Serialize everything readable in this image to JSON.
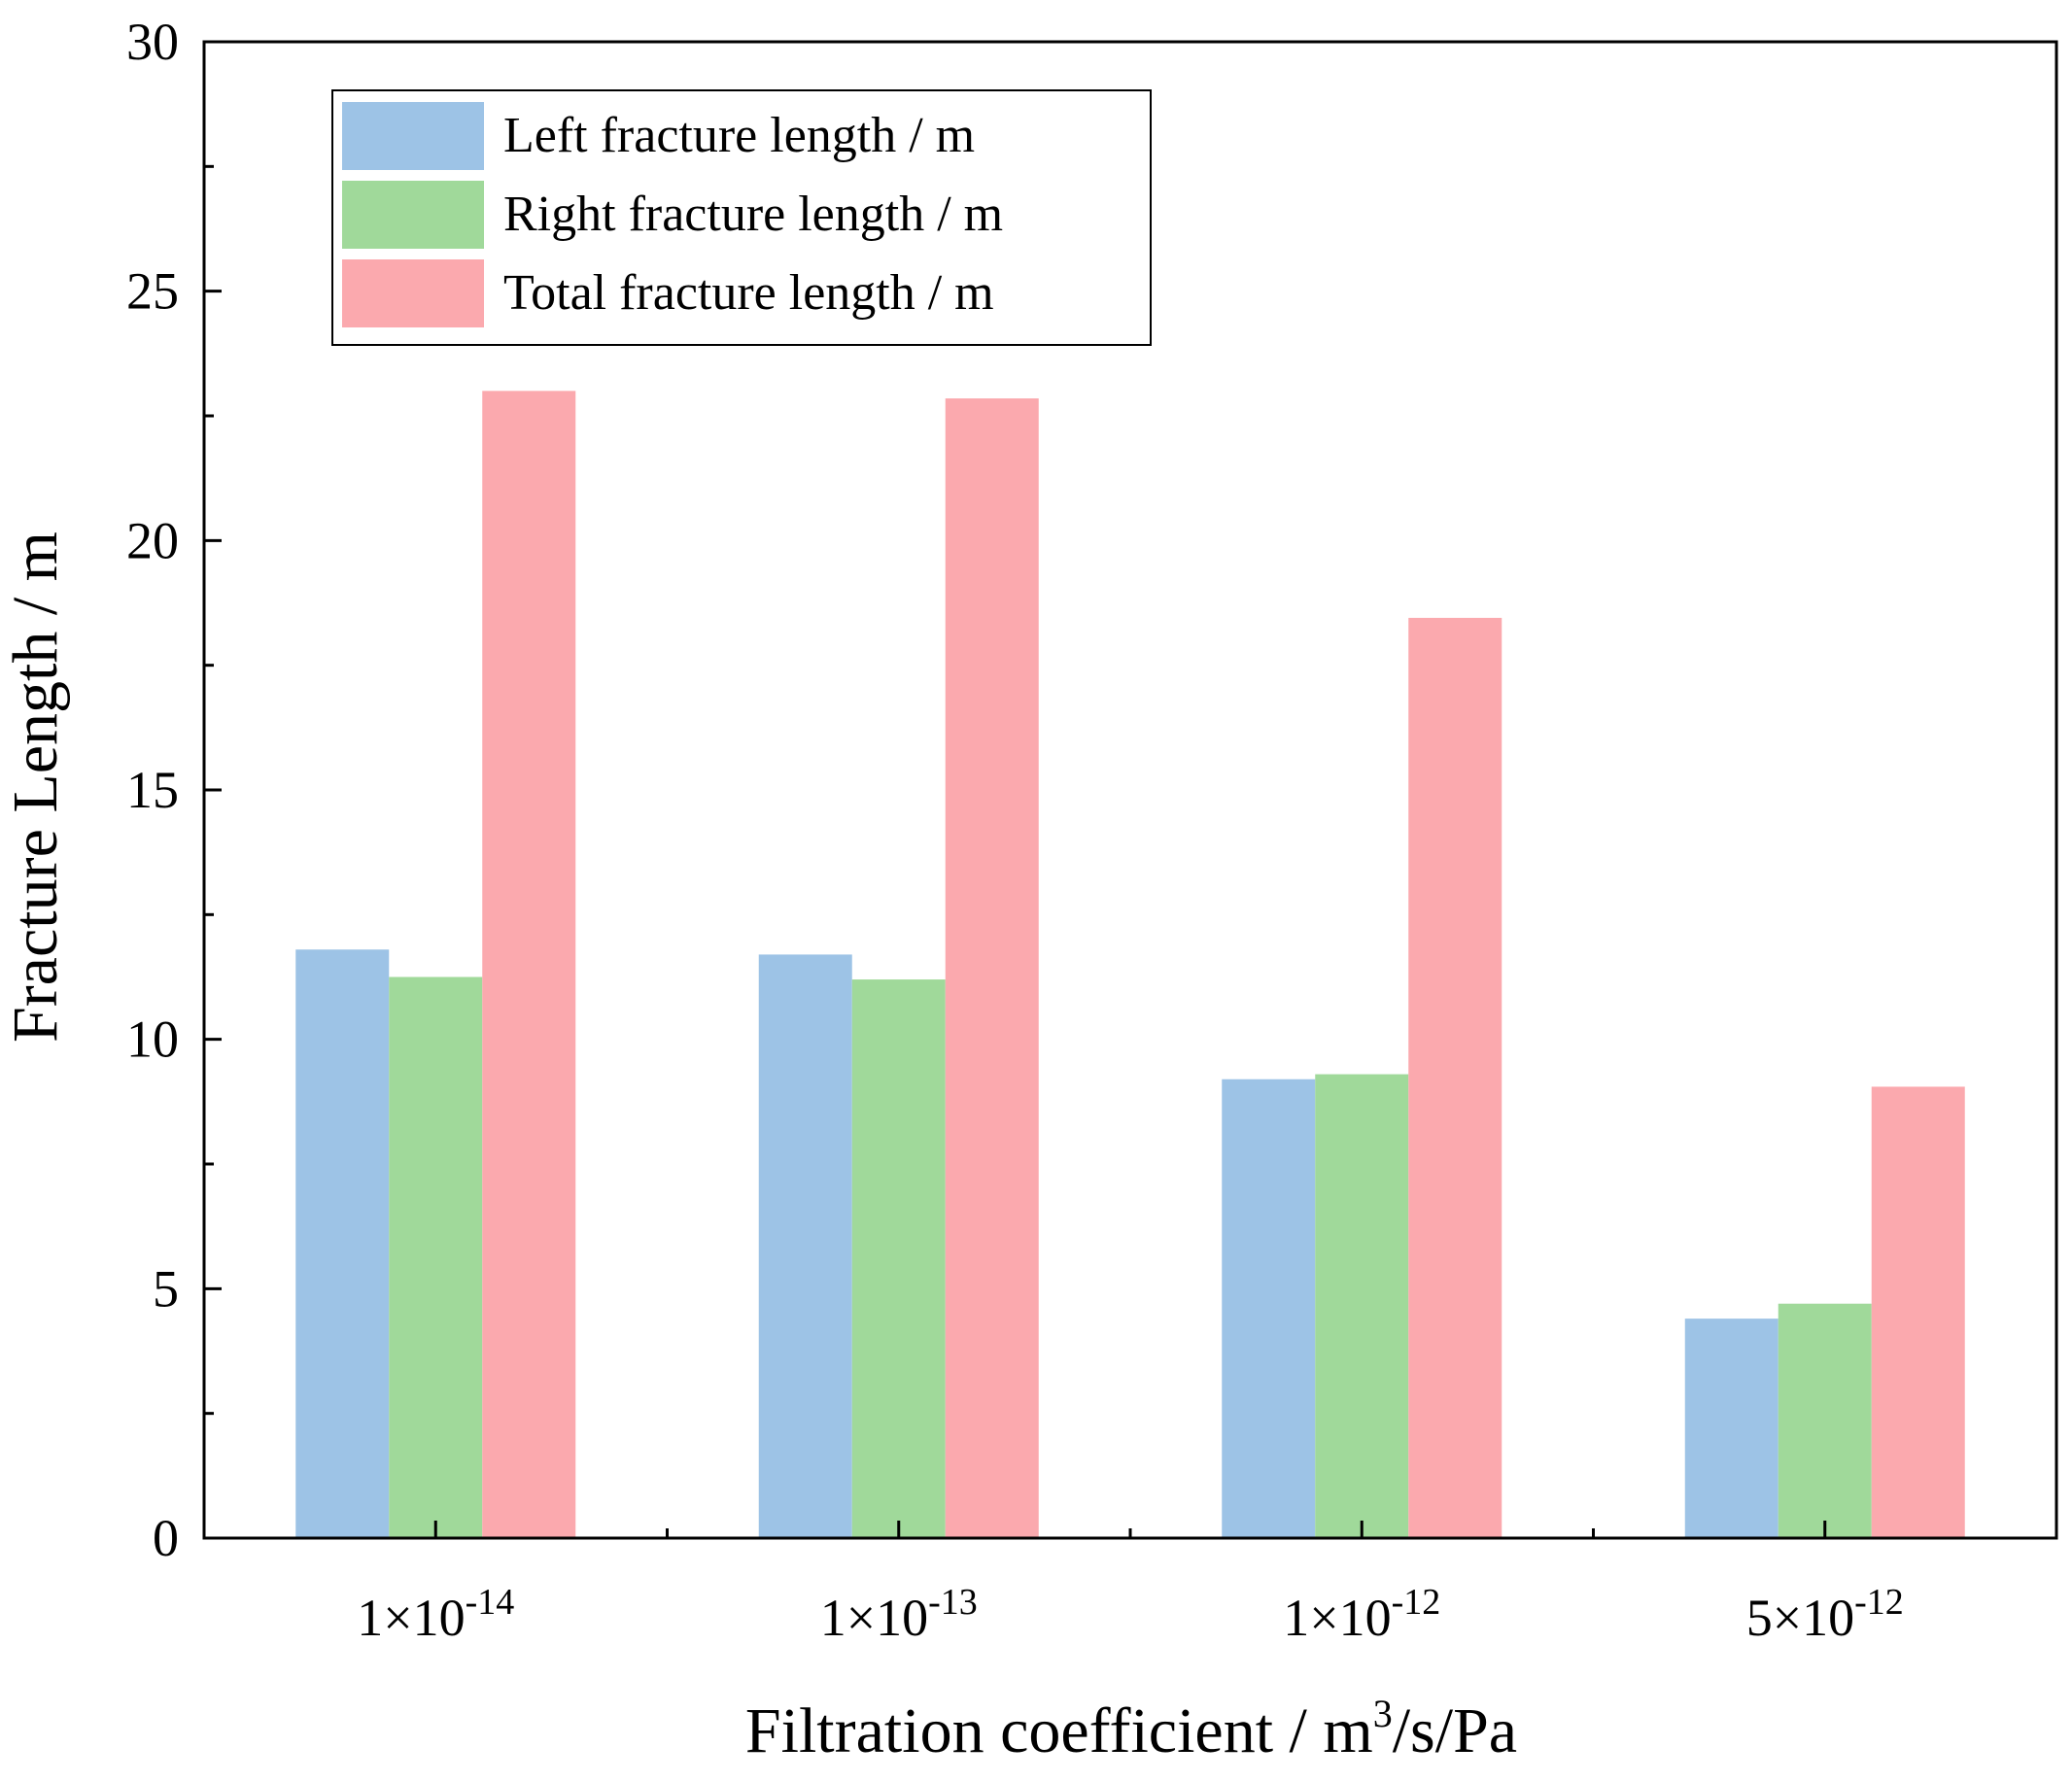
{
  "chart_data": {
    "type": "bar",
    "categories": [
      {
        "base": "1×10",
        "exp": "-14"
      },
      {
        "base": "1×10",
        "exp": "-13"
      },
      {
        "base": "1×10",
        "exp": "-12"
      },
      {
        "base": "5×10",
        "exp": "-12"
      }
    ],
    "series": [
      {
        "name": "Left fracture length / m",
        "color": "#9dc3e6",
        "values": [
          11.8,
          11.7,
          9.2,
          4.4
        ]
      },
      {
        "name": "Right fracture length / m",
        "color": "#a0d99a",
        "values": [
          11.25,
          11.2,
          9.3,
          4.7
        ]
      },
      {
        "name": "Total fracture length / m",
        "color": "#fba9ae",
        "values": [
          23.0,
          22.85,
          18.45,
          9.05
        ]
      }
    ],
    "xlabel": {
      "pre": "Filtration coefficient / m",
      "sup": "3",
      "post": "/s/Pa"
    },
    "ylabel": "Fracture Length / m",
    "ylim": [
      0,
      30
    ],
    "yticks": [
      0,
      5,
      10,
      15,
      20,
      25,
      30
    ],
    "legend_position": "top-left",
    "grid": false
  }
}
